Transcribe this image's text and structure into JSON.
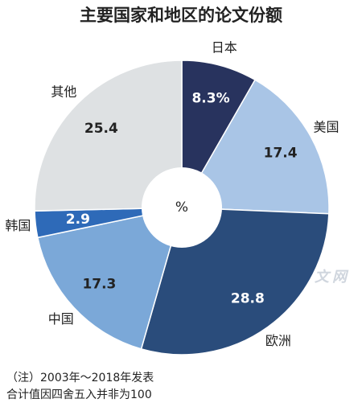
{
  "chart_data": {
    "type": "donut",
    "title": "主要国家和地区的论文份额",
    "center_label": "%",
    "categories": [
      "日本",
      "美国",
      "欧洲",
      "中国",
      "韩国",
      "其他"
    ],
    "values": [
      8.3,
      17.4,
      28.8,
      17.3,
      2.9,
      25.4
    ],
    "value_labels": [
      "8.3%",
      "17.4",
      "28.8",
      "17.3",
      "2.9",
      "25.4"
    ],
    "colors": [
      "#28335e",
      "#a9c5e6",
      "#2a4c7b",
      "#7ba8d8",
      "#2e6ab8",
      "#dee1e3"
    ],
    "notes": [
      "（注）2003年～2018年发表",
      "合计值因四舍五入并非为100"
    ],
    "watermark": "日经中文网"
  }
}
